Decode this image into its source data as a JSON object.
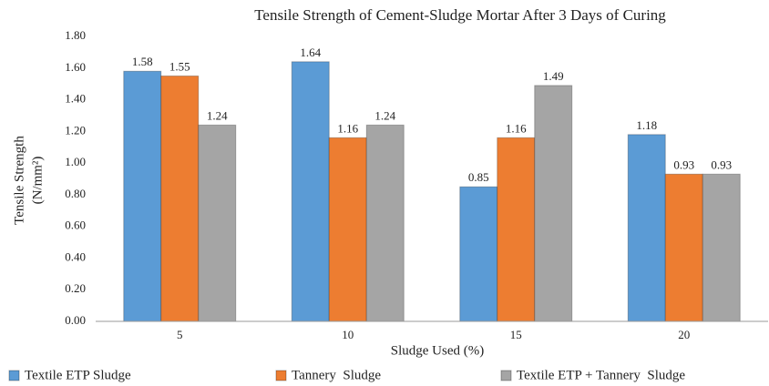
{
  "chart_data": {
    "type": "bar",
    "title": "Tensile Strength of Cement-Sludge Mortar After 3 Days of Curing",
    "xlabel": "Sludge Used (%)",
    "ylabel": [
      "Tensile Strength",
      "(N/mm²)"
    ],
    "categories": [
      "5",
      "10",
      "15",
      "20"
    ],
    "series": [
      {
        "name": "Textile ETP Sludge",
        "color": "#5b9bd5",
        "values": [
          1.58,
          1.64,
          0.85,
          1.18
        ]
      },
      {
        "name": "Tannery  Sludge",
        "color": "#ed7d31",
        "values": [
          1.55,
          1.16,
          1.16,
          0.93
        ]
      },
      {
        "name": "Textile ETP + Tannery  Sludge",
        "color": "#a5a5a5",
        "values": [
          1.24,
          1.24,
          1.49,
          0.93
        ]
      }
    ],
    "ylim": [
      0,
      1.8
    ],
    "yticks": [
      {
        "value": 0,
        "label": "0.00"
      },
      {
        "value": 0.2,
        "label": "0.20"
      },
      {
        "value": 0.4,
        "label": "0.40"
      },
      {
        "value": 0.6,
        "label": "0.60"
      },
      {
        "value": 0.8,
        "label": "0.80"
      },
      {
        "value": 1.0,
        "label": "1.00"
      },
      {
        "value": 1.2,
        "label": "1.20"
      },
      {
        "value": 1.4,
        "label": "1.40"
      },
      {
        "value": 1.6,
        "label": "1.60"
      },
      {
        "value": 1.8,
        "label": "1.80"
      }
    ],
    "grid": false,
    "legend": "bottom"
  }
}
